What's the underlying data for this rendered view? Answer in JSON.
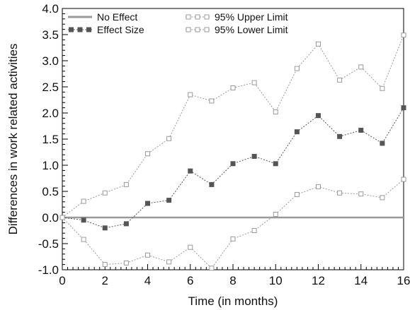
{
  "chart_data": {
    "type": "line",
    "xlabel": "Time (in months)",
    "ylabel": "Differences in work related activities",
    "xlim": [
      0,
      16
    ],
    "ylim": [
      -1.0,
      4.0
    ],
    "xticks": [
      0,
      2,
      4,
      6,
      8,
      10,
      12,
      14,
      16
    ],
    "yticks": [
      -1.0,
      -0.5,
      0.0,
      0.5,
      1.0,
      1.5,
      2.0,
      2.5,
      3.0,
      3.5,
      4.0
    ],
    "grid": false,
    "legend": "top",
    "x": [
      0,
      1,
      2,
      3,
      4,
      5,
      6,
      7,
      8,
      9,
      10,
      11,
      12,
      13,
      14,
      15,
      16
    ],
    "series": [
      {
        "name": "No Effect",
        "style": "solid-line",
        "color": "#9a9a9a",
        "values": [
          0,
          0,
          0,
          0,
          0,
          0,
          0,
          0,
          0,
          0,
          0,
          0,
          0,
          0,
          0,
          0,
          0
        ]
      },
      {
        "name": "Effect Size",
        "style": "filled-square",
        "color": "#555555",
        "values": [
          0.0,
          -0.05,
          -0.2,
          -0.12,
          0.27,
          0.33,
          0.89,
          0.63,
          1.03,
          1.17,
          1.03,
          1.64,
          1.95,
          1.55,
          1.67,
          1.42,
          2.1
        ]
      },
      {
        "name": "95% Upper Limit",
        "style": "open-square",
        "color": "#9a9a9a",
        "values": [
          0.0,
          0.31,
          0.47,
          0.63,
          1.22,
          1.51,
          2.35,
          2.23,
          2.48,
          2.58,
          2.02,
          2.85,
          3.32,
          2.63,
          2.88,
          2.47,
          3.49
        ]
      },
      {
        "name": "95% Lower Limit",
        "style": "open-square",
        "color": "#9a9a9a",
        "values": [
          0.0,
          -0.42,
          -0.9,
          -0.87,
          -0.72,
          -0.85,
          -0.57,
          -0.97,
          -0.41,
          -0.25,
          0.06,
          0.44,
          0.59,
          0.47,
          0.45,
          0.38,
          0.73
        ]
      }
    ]
  }
}
